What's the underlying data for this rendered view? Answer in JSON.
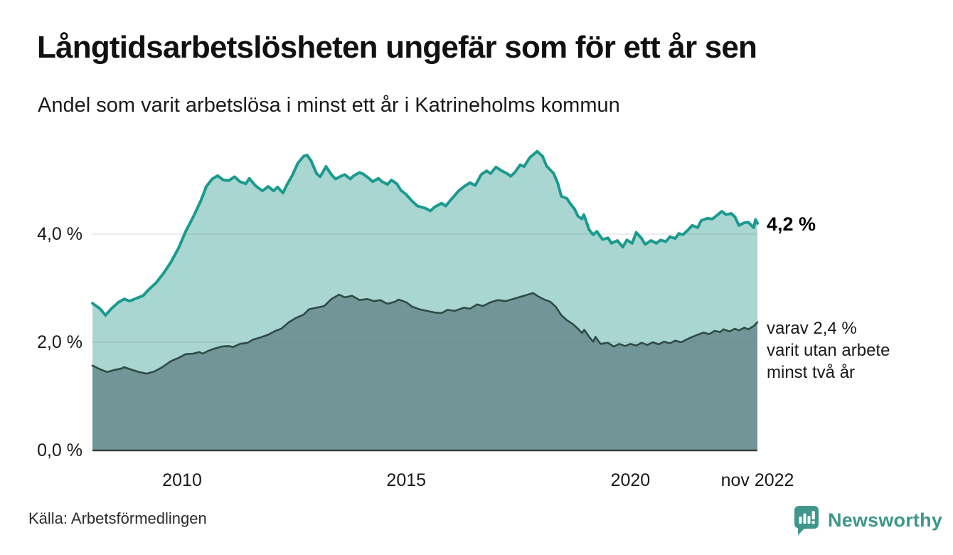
{
  "title": "Långtidsarbetslösheten ungefär som för ett år sen",
  "subtitle": "Andel som varit arbetslösa i minst ett år i Katrineholms kommun",
  "source": "Källa: Arbetsförmedlingen",
  "branding": {
    "name": "Newsworthy",
    "color": "#3F968B",
    "icon": "speech-bubble-with-bar-chart-and-exclamation"
  },
  "annotations": {
    "latest_total": "4,2 %",
    "latest_sub_lines": [
      "varav 2,4 %",
      "varit utan arbete",
      "minst två år"
    ]
  },
  "colors": {
    "background": "#ffffff",
    "total_line": "#1B9A8F",
    "total_fill": "#A9D6D0",
    "sub_line": "#2E4B46",
    "sub_fill": "#729697",
    "gridline": "rgba(96,116,126,0.18)",
    "axis_line": "#3A3F42",
    "text": "#1a1a1a"
  },
  "chart_data": {
    "type": "area",
    "title": "Långtidsarbetslösheten ungefär som för ett år sen",
    "subtitle": "Andel som varit arbetslösa i minst ett år i Katrineholms kommun",
    "unit": "%",
    "grid": true,
    "legend_position": "none",
    "x_axis": {
      "domain": [
        2008.0,
        2022.833
      ],
      "ticks": [
        {
          "label": "2010",
          "value": 2010
        },
        {
          "label": "2015",
          "value": 2015
        },
        {
          "label": "2020",
          "value": 2020
        },
        {
          "label": "nov 2022",
          "value": 2022.833
        }
      ]
    },
    "y_axis": {
      "max": 5.9,
      "ticks": [
        {
          "label": "0,0 %",
          "value": 0
        },
        {
          "label": "2,0 %",
          "value": 2
        },
        {
          "label": "4,0 %",
          "value": 4
        }
      ]
    },
    "series": [
      {
        "name": "Arbetslösa minst ett år",
        "end_value": 4.2,
        "end_label": "4,2 %",
        "color": "#1B9A8F",
        "fill": "#A9D6D0",
        "points": [
          [
            2008.0,
            2.72
          ],
          [
            2008.17,
            2.62
          ],
          [
            2008.29,
            2.5
          ],
          [
            2008.42,
            2.62
          ],
          [
            2008.58,
            2.74
          ],
          [
            2008.71,
            2.8
          ],
          [
            2008.83,
            2.76
          ],
          [
            2009.0,
            2.82
          ],
          [
            2009.13,
            2.86
          ],
          [
            2009.25,
            2.97
          ],
          [
            2009.42,
            3.1
          ],
          [
            2009.58,
            3.27
          ],
          [
            2009.75,
            3.48
          ],
          [
            2009.92,
            3.74
          ],
          [
            2010.08,
            4.05
          ],
          [
            2010.25,
            4.32
          ],
          [
            2010.42,
            4.62
          ],
          [
            2010.54,
            4.88
          ],
          [
            2010.67,
            5.02
          ],
          [
            2010.79,
            5.08
          ],
          [
            2010.92,
            5.0
          ],
          [
            2011.04,
            4.99
          ],
          [
            2011.17,
            5.06
          ],
          [
            2011.29,
            4.97
          ],
          [
            2011.42,
            4.93
          ],
          [
            2011.5,
            5.03
          ],
          [
            2011.63,
            4.9
          ],
          [
            2011.79,
            4.8
          ],
          [
            2011.92,
            4.88
          ],
          [
            2012.04,
            4.8
          ],
          [
            2012.13,
            4.87
          ],
          [
            2012.25,
            4.76
          ],
          [
            2012.33,
            4.9
          ],
          [
            2012.46,
            5.09
          ],
          [
            2012.58,
            5.31
          ],
          [
            2012.71,
            5.44
          ],
          [
            2012.79,
            5.46
          ],
          [
            2012.88,
            5.35
          ],
          [
            2013.0,
            5.12
          ],
          [
            2013.08,
            5.06
          ],
          [
            2013.21,
            5.25
          ],
          [
            2013.33,
            5.1
          ],
          [
            2013.42,
            5.02
          ],
          [
            2013.54,
            5.07
          ],
          [
            2013.63,
            5.1
          ],
          [
            2013.75,
            5.02
          ],
          [
            2013.83,
            5.08
          ],
          [
            2013.96,
            5.14
          ],
          [
            2014.04,
            5.11
          ],
          [
            2014.17,
            5.03
          ],
          [
            2014.25,
            4.97
          ],
          [
            2014.38,
            5.03
          ],
          [
            2014.46,
            4.97
          ],
          [
            2014.58,
            4.92
          ],
          [
            2014.67,
            5.0
          ],
          [
            2014.79,
            4.93
          ],
          [
            2014.88,
            4.81
          ],
          [
            2015.0,
            4.73
          ],
          [
            2015.13,
            4.61
          ],
          [
            2015.25,
            4.52
          ],
          [
            2015.42,
            4.48
          ],
          [
            2015.54,
            4.43
          ],
          [
            2015.63,
            4.5
          ],
          [
            2015.79,
            4.57
          ],
          [
            2015.88,
            4.52
          ],
          [
            2016.0,
            4.64
          ],
          [
            2016.17,
            4.8
          ],
          [
            2016.29,
            4.88
          ],
          [
            2016.42,
            4.95
          ],
          [
            2016.54,
            4.9
          ],
          [
            2016.67,
            5.1
          ],
          [
            2016.79,
            5.17
          ],
          [
            2016.88,
            5.12
          ],
          [
            2017.0,
            5.24
          ],
          [
            2017.13,
            5.17
          ],
          [
            2017.25,
            5.12
          ],
          [
            2017.33,
            5.07
          ],
          [
            2017.42,
            5.14
          ],
          [
            2017.54,
            5.28
          ],
          [
            2017.63,
            5.25
          ],
          [
            2017.75,
            5.41
          ],
          [
            2017.92,
            5.53
          ],
          [
            2018.04,
            5.44
          ],
          [
            2018.13,
            5.26
          ],
          [
            2018.21,
            5.19
          ],
          [
            2018.29,
            5.12
          ],
          [
            2018.38,
            4.94
          ],
          [
            2018.46,
            4.7
          ],
          [
            2018.58,
            4.66
          ],
          [
            2018.67,
            4.55
          ],
          [
            2018.75,
            4.47
          ],
          [
            2018.83,
            4.33
          ],
          [
            2018.92,
            4.28
          ],
          [
            2018.96,
            4.36
          ],
          [
            2019.08,
            4.08
          ],
          [
            2019.17,
            3.99
          ],
          [
            2019.25,
            4.05
          ],
          [
            2019.38,
            3.9
          ],
          [
            2019.5,
            3.93
          ],
          [
            2019.58,
            3.83
          ],
          [
            2019.71,
            3.88
          ],
          [
            2019.83,
            3.76
          ],
          [
            2019.92,
            3.89
          ],
          [
            2020.04,
            3.83
          ],
          [
            2020.13,
            4.03
          ],
          [
            2020.25,
            3.92
          ],
          [
            2020.33,
            3.81
          ],
          [
            2020.46,
            3.88
          ],
          [
            2020.58,
            3.83
          ],
          [
            2020.67,
            3.89
          ],
          [
            2020.79,
            3.86
          ],
          [
            2020.88,
            3.95
          ],
          [
            2021.0,
            3.92
          ],
          [
            2021.08,
            4.01
          ],
          [
            2021.17,
            3.99
          ],
          [
            2021.29,
            4.08
          ],
          [
            2021.38,
            4.16
          ],
          [
            2021.5,
            4.12
          ],
          [
            2021.58,
            4.25
          ],
          [
            2021.71,
            4.29
          ],
          [
            2021.83,
            4.28
          ],
          [
            2021.92,
            4.34
          ],
          [
            2022.04,
            4.42
          ],
          [
            2022.13,
            4.36
          ],
          [
            2022.25,
            4.38
          ],
          [
            2022.33,
            4.32
          ],
          [
            2022.42,
            4.16
          ],
          [
            2022.54,
            4.21
          ],
          [
            2022.63,
            4.22
          ],
          [
            2022.75,
            4.12
          ],
          [
            2022.79,
            4.27
          ],
          [
            2022.833,
            4.2
          ]
        ]
      },
      {
        "name": "varav utan arbete minst två år",
        "end_value": 2.4,
        "end_label": "varav 2,4 % varit utan arbete minst två år",
        "color": "#2E4B46",
        "fill": "#729697",
        "points": [
          [
            2008.0,
            1.57
          ],
          [
            2008.17,
            1.5
          ],
          [
            2008.33,
            1.45
          ],
          [
            2008.5,
            1.49
          ],
          [
            2008.63,
            1.51
          ],
          [
            2008.71,
            1.54
          ],
          [
            2008.88,
            1.49
          ],
          [
            2009.04,
            1.45
          ],
          [
            2009.21,
            1.42
          ],
          [
            2009.38,
            1.46
          ],
          [
            2009.54,
            1.53
          ],
          [
            2009.75,
            1.65
          ],
          [
            2009.92,
            1.71
          ],
          [
            2010.08,
            1.78
          ],
          [
            2010.25,
            1.79
          ],
          [
            2010.38,
            1.82
          ],
          [
            2010.46,
            1.79
          ],
          [
            2010.58,
            1.84
          ],
          [
            2010.71,
            1.88
          ],
          [
            2010.88,
            1.92
          ],
          [
            2011.04,
            1.93
          ],
          [
            2011.13,
            1.91
          ],
          [
            2011.29,
            1.97
          ],
          [
            2011.46,
            1.99
          ],
          [
            2011.58,
            2.05
          ],
          [
            2011.75,
            2.09
          ],
          [
            2011.92,
            2.14
          ],
          [
            2012.08,
            2.21
          ],
          [
            2012.21,
            2.25
          ],
          [
            2012.38,
            2.37
          ],
          [
            2012.54,
            2.45
          ],
          [
            2012.71,
            2.51
          ],
          [
            2012.83,
            2.61
          ],
          [
            2013.0,
            2.64
          ],
          [
            2013.17,
            2.67
          ],
          [
            2013.33,
            2.8
          ],
          [
            2013.5,
            2.88
          ],
          [
            2013.63,
            2.83
          ],
          [
            2013.79,
            2.86
          ],
          [
            2013.96,
            2.78
          ],
          [
            2014.13,
            2.8
          ],
          [
            2014.29,
            2.76
          ],
          [
            2014.42,
            2.78
          ],
          [
            2014.58,
            2.71
          ],
          [
            2014.75,
            2.75
          ],
          [
            2014.83,
            2.79
          ],
          [
            2015.0,
            2.74
          ],
          [
            2015.13,
            2.66
          ],
          [
            2015.29,
            2.61
          ],
          [
            2015.46,
            2.58
          ],
          [
            2015.63,
            2.55
          ],
          [
            2015.79,
            2.54
          ],
          [
            2015.92,
            2.6
          ],
          [
            2016.08,
            2.58
          ],
          [
            2016.29,
            2.64
          ],
          [
            2016.42,
            2.62
          ],
          [
            2016.58,
            2.7
          ],
          [
            2016.71,
            2.67
          ],
          [
            2016.88,
            2.74
          ],
          [
            2017.04,
            2.78
          ],
          [
            2017.21,
            2.76
          ],
          [
            2017.38,
            2.8
          ],
          [
            2017.54,
            2.84
          ],
          [
            2017.67,
            2.87
          ],
          [
            2017.83,
            2.91
          ],
          [
            2017.96,
            2.84
          ],
          [
            2018.08,
            2.79
          ],
          [
            2018.21,
            2.75
          ],
          [
            2018.33,
            2.66
          ],
          [
            2018.46,
            2.5
          ],
          [
            2018.58,
            2.41
          ],
          [
            2018.71,
            2.34
          ],
          [
            2018.83,
            2.25
          ],
          [
            2018.92,
            2.17
          ],
          [
            2018.97,
            2.23
          ],
          [
            2019.08,
            2.1
          ],
          [
            2019.17,
            2.01
          ],
          [
            2019.22,
            2.1
          ],
          [
            2019.33,
            1.97
          ],
          [
            2019.5,
            1.99
          ],
          [
            2019.63,
            1.92
          ],
          [
            2019.75,
            1.97
          ],
          [
            2019.88,
            1.93
          ],
          [
            2020.0,
            1.97
          ],
          [
            2020.13,
            1.94
          ],
          [
            2020.25,
            1.99
          ],
          [
            2020.38,
            1.95
          ],
          [
            2020.5,
            2.0
          ],
          [
            2020.63,
            1.96
          ],
          [
            2020.75,
            2.01
          ],
          [
            2020.88,
            1.98
          ],
          [
            2021.0,
            2.03
          ],
          [
            2021.13,
            2.0
          ],
          [
            2021.25,
            2.05
          ],
          [
            2021.38,
            2.1
          ],
          [
            2021.5,
            2.14
          ],
          [
            2021.63,
            2.18
          ],
          [
            2021.75,
            2.15
          ],
          [
            2021.88,
            2.21
          ],
          [
            2022.0,
            2.19
          ],
          [
            2022.08,
            2.24
          ],
          [
            2022.21,
            2.2
          ],
          [
            2022.33,
            2.25
          ],
          [
            2022.42,
            2.22
          ],
          [
            2022.54,
            2.27
          ],
          [
            2022.63,
            2.24
          ],
          [
            2022.75,
            2.3
          ],
          [
            2022.833,
            2.37
          ]
        ]
      }
    ],
    "source": "Källa: Arbetsförmedlingen"
  }
}
